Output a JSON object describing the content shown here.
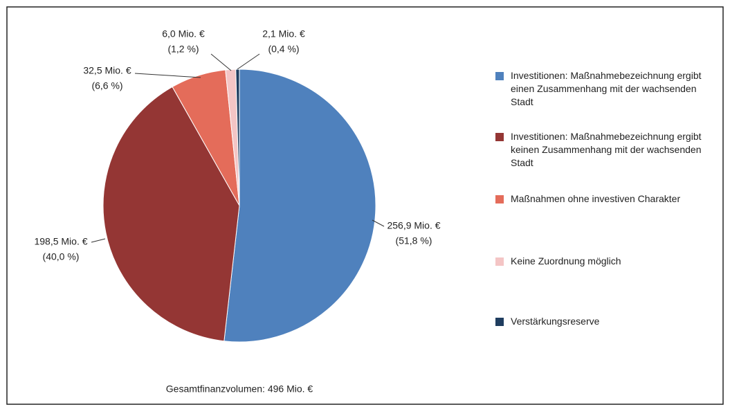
{
  "chart_data": {
    "type": "pie",
    "categories": [
      "Investitionen: Maßnahmebezeichnung ergibt einen Zusammenhang mit der wachsenden Stadt",
      "Investitionen: Maßnahmebezeichnung ergibt keinen Zusammenhang mit der wachsenden Stadt",
      "Maßnahmen ohne investiven Charakter",
      "Keine Zuordnung möglich",
      "Verstärkungsreserve"
    ],
    "values": [
      256.9,
      198.5,
      32.5,
      6.0,
      2.1
    ],
    "value_labels": [
      "256,9 Mio. €",
      "198,5 Mio. €",
      "32,5 Mio. €",
      "6,0 Mio. €",
      "2,1 Mio. €"
    ],
    "percent_labels": [
      "(51,8 %)",
      "(40,0 %)",
      "(6,6 %)",
      "(1,2 %)",
      "(0,4 %)"
    ],
    "colors": [
      "#4f81bd",
      "#943634",
      "#e46c5a",
      "#f4c5c5",
      "#1f3d5f"
    ],
    "legend": "right",
    "note": "Gesamtfinanzvolumen: 496 Mio. €"
  }
}
